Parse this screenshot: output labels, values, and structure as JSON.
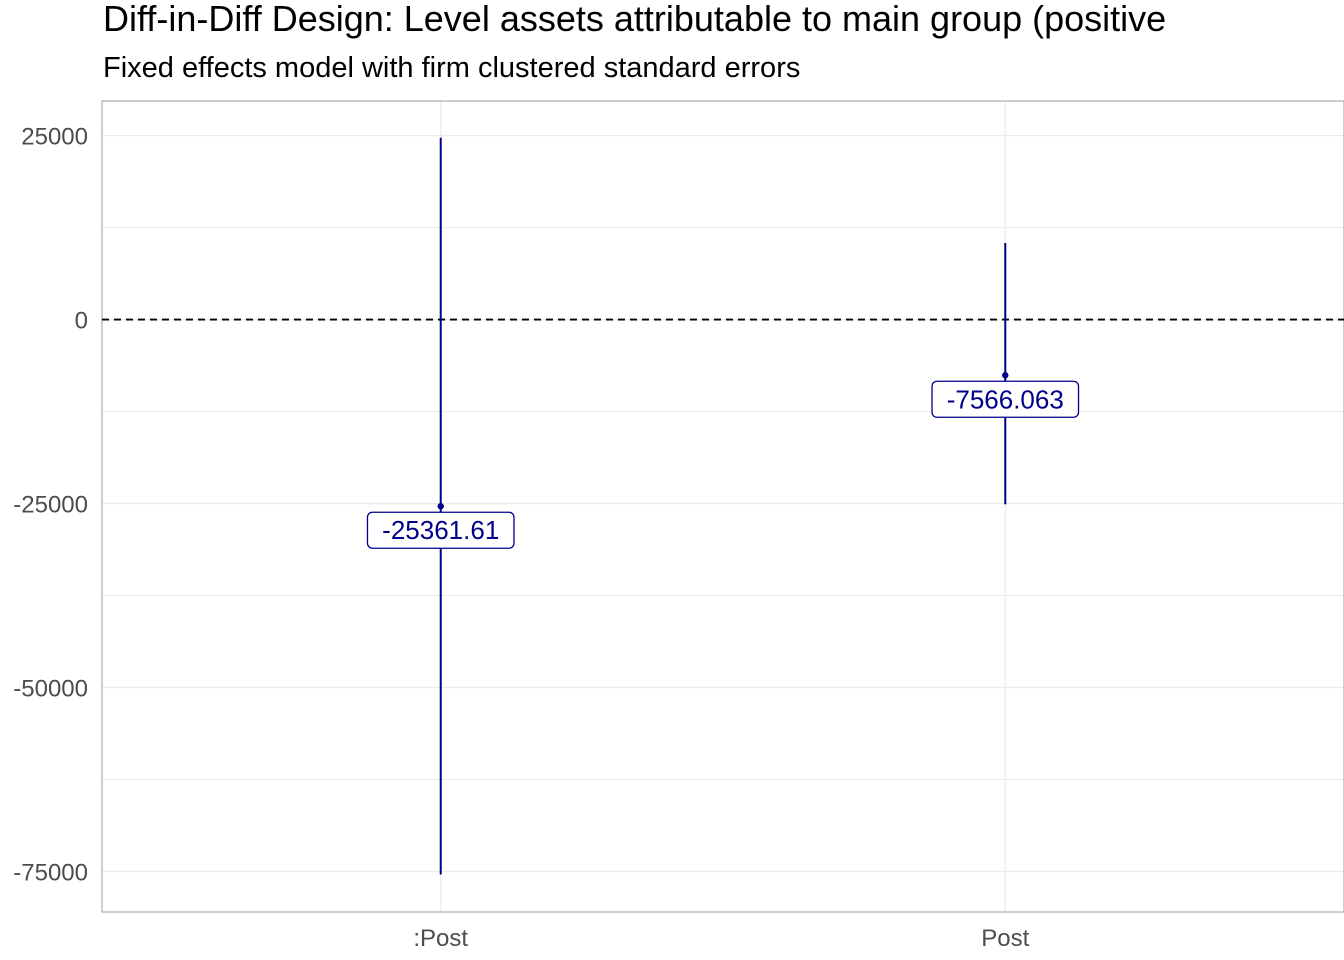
{
  "chart_data": {
    "type": "errorbar",
    "title": "Diff-in-Diff Design: Level assets attributable to main group (positive",
    "subtitle": "Fixed effects model with firm clustered standard errors",
    "categories": [
      ":Post",
      "Post"
    ],
    "estimates": [
      -25361.61,
      -7566.063
    ],
    "estimate_labels": [
      "-25361.61",
      "-7566.063"
    ],
    "ci_lower": [
      -75400,
      -25100
    ],
    "ci_upper": [
      24700,
      10400
    ],
    "ylim": [
      -80500,
      29700
    ],
    "yticks": [
      25000,
      0,
      -25000,
      -50000,
      -75000
    ],
    "ytick_labels": [
      "25000",
      "0",
      "-25000",
      "-50000",
      "-75000"
    ],
    "reference_line": 0,
    "xlabel": "",
    "ylabel": "",
    "grid": true,
    "colors": {
      "series": "#00008b",
      "grid": "#ebebeb",
      "panel_border": "#b3b3b3",
      "reference": "#000000"
    }
  }
}
